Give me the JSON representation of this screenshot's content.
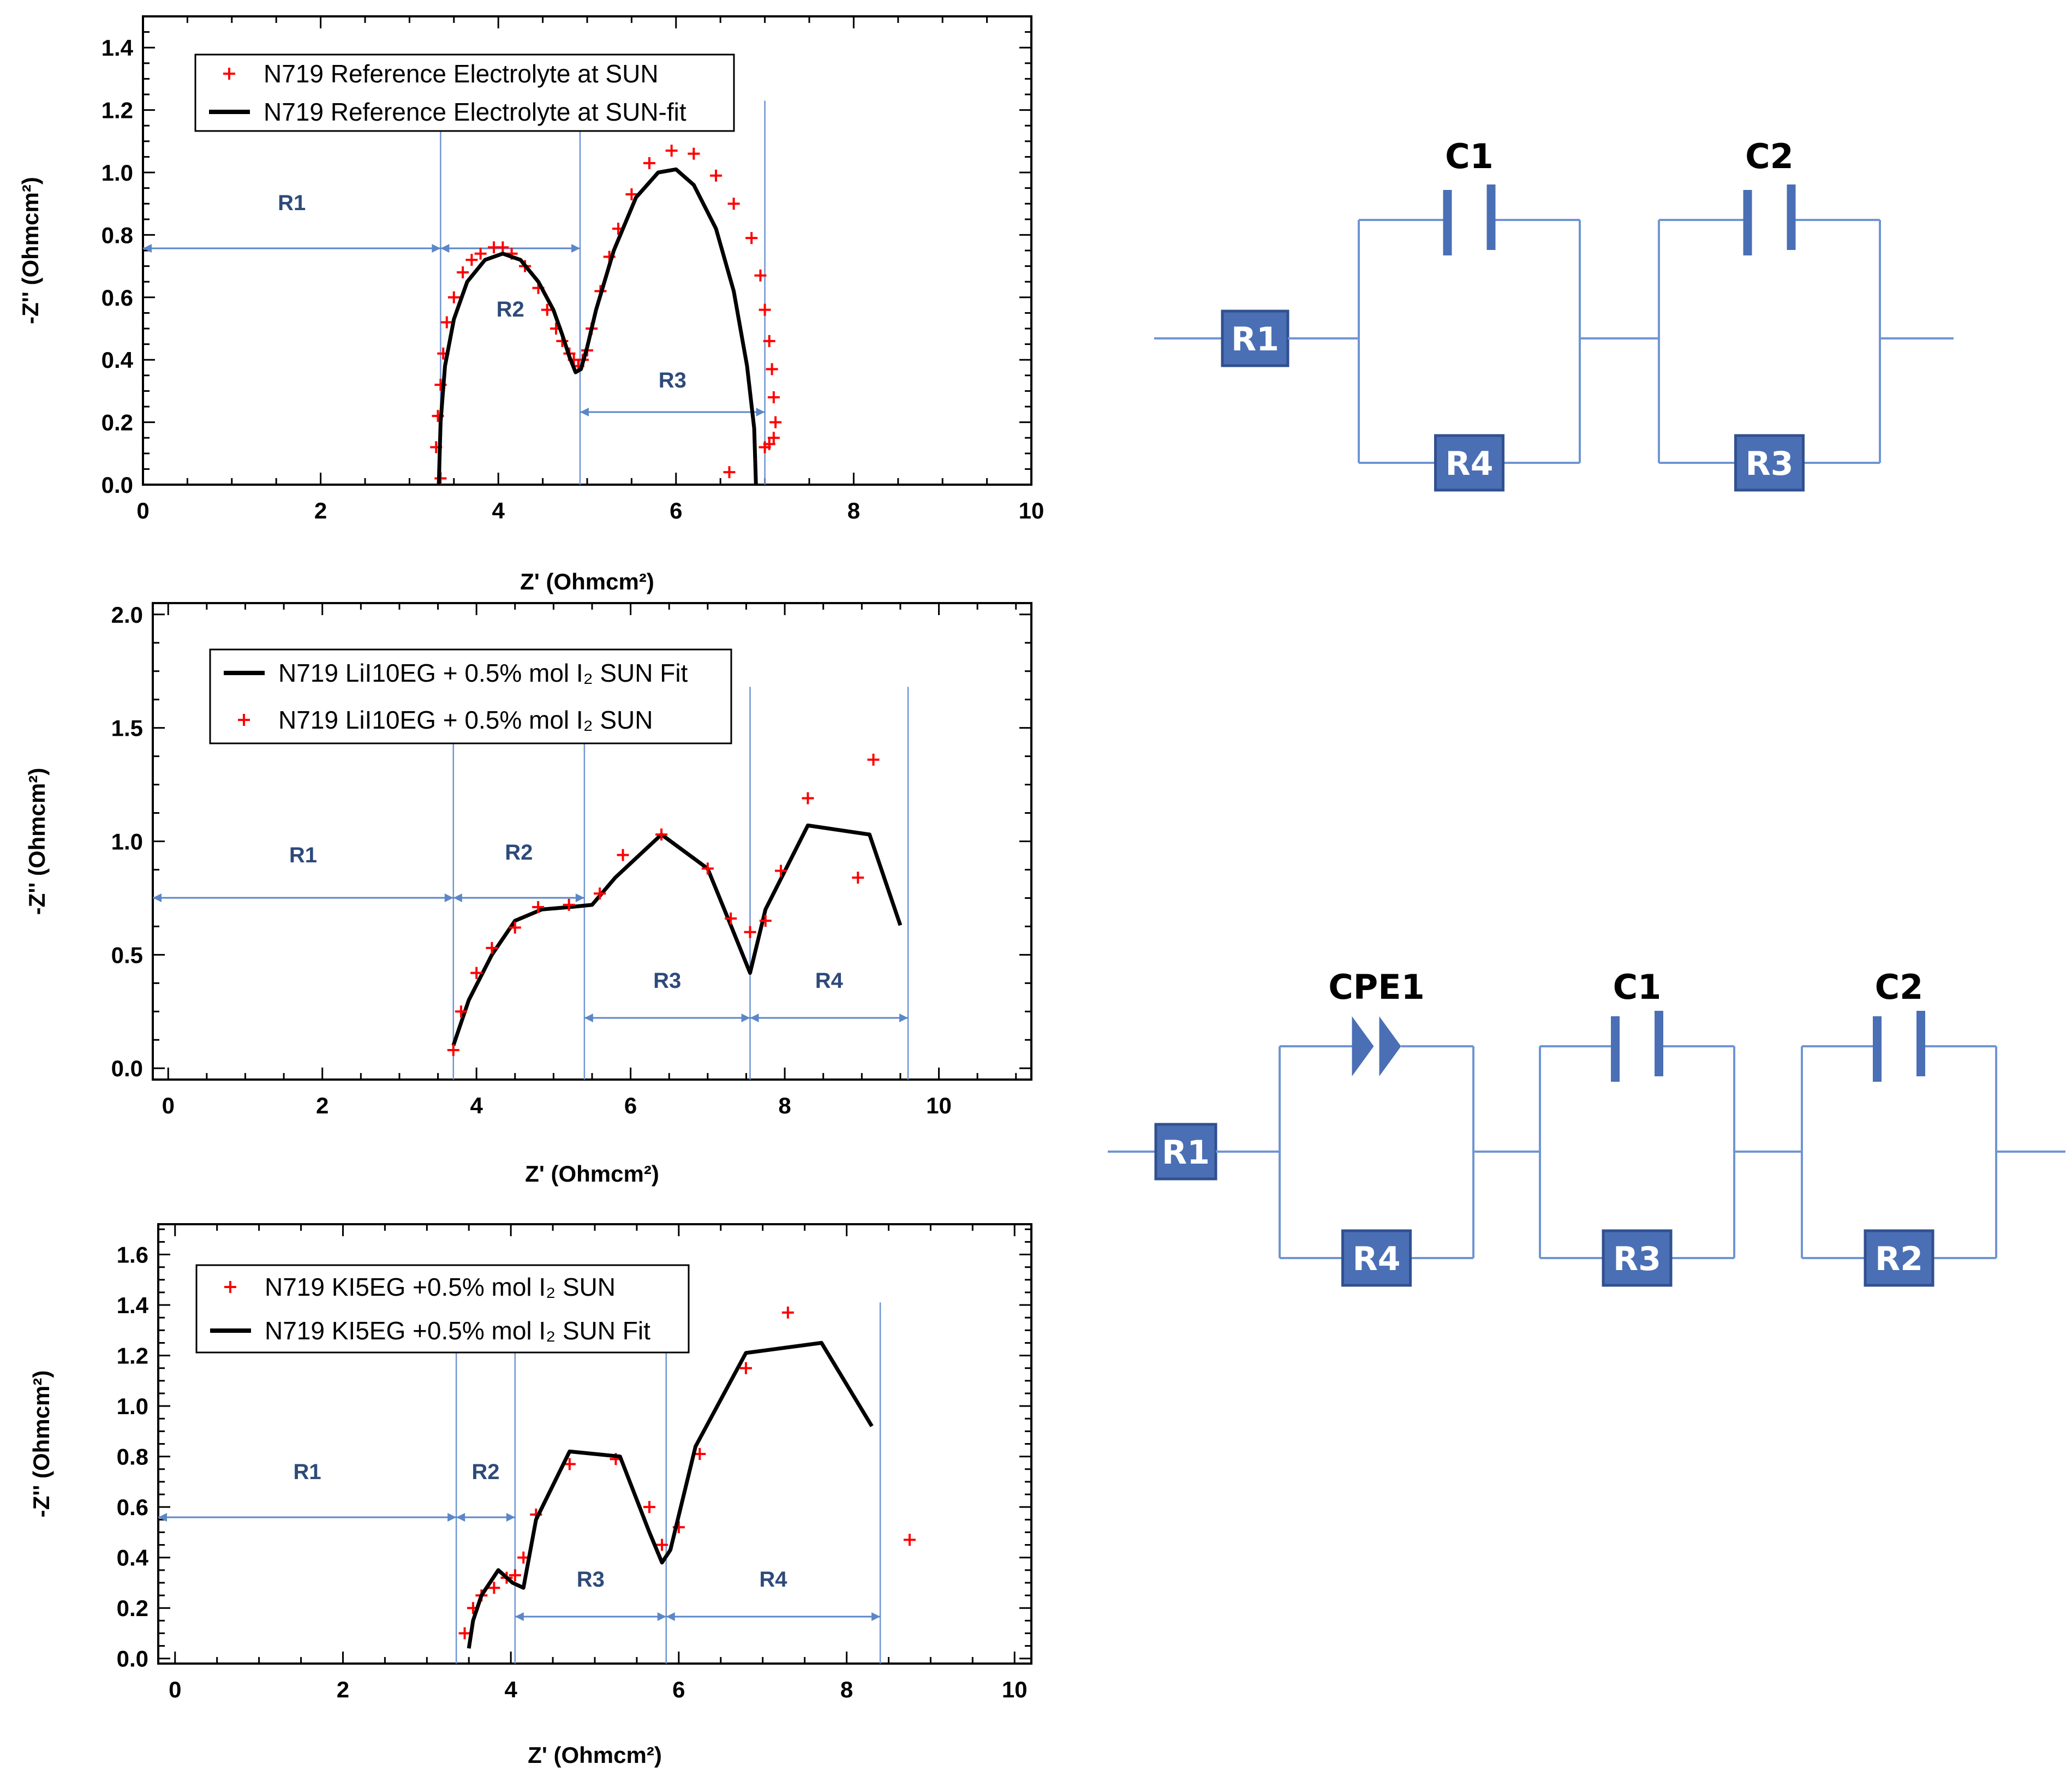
{
  "colors": {
    "marker": "#ff0000",
    "fit": "#000000",
    "guide": "#6f95d2",
    "arrow": "#5b87c8",
    "wire": "#6f95d2",
    "component_fill": "#4a6fb5",
    "component_edge": "#31508f",
    "region_text": "#2e4a7a"
  },
  "chart_data": [
    {
      "type": "scatter",
      "xlabel": "Z' (Ohmcm²)",
      "ylabel": "-Z'' (Ohmcm²)",
      "xlim": [
        0,
        10
      ],
      "ylim": [
        0,
        1.5
      ],
      "xticks": [
        "0",
        "2",
        "4",
        "6",
        "8",
        "10"
      ],
      "yticks": [
        "0.0",
        "0.2",
        "0.4",
        "0.6",
        "0.8",
        "1.0",
        "1.2",
        "1.4"
      ],
      "legend_position": "top-left",
      "series": [
        {
          "name": "N719 Reference Electrolyte at SUN",
          "style": "marker",
          "x": [
            3.35,
            3.3,
            3.32,
            3.35,
            3.38,
            3.42,
            3.5,
            3.6,
            3.7,
            3.8,
            3.95,
            4.05,
            4.15,
            4.3,
            4.45,
            4.55,
            4.65,
            4.72,
            4.8,
            4.85,
            4.9,
            4.95,
            5.0,
            5.05,
            5.15,
            5.25,
            5.35,
            5.5,
            5.7,
            5.95,
            6.2,
            6.45,
            6.65,
            6.85,
            6.95,
            7.0,
            7.05,
            7.08,
            7.1,
            7.12,
            7.1,
            7.05,
            7.0,
            6.6
          ],
          "y": [
            0.02,
            0.12,
            0.22,
            0.32,
            0.42,
            0.52,
            0.6,
            0.68,
            0.72,
            0.74,
            0.76,
            0.76,
            0.74,
            0.7,
            0.63,
            0.56,
            0.5,
            0.46,
            0.42,
            0.4,
            0.38,
            0.4,
            0.43,
            0.5,
            0.62,
            0.73,
            0.82,
            0.93,
            1.03,
            1.07,
            1.06,
            0.99,
            0.9,
            0.79,
            0.67,
            0.56,
            0.46,
            0.37,
            0.28,
            0.2,
            0.15,
            0.13,
            0.12,
            0.04
          ]
        },
        {
          "name": "N719 Reference Electrolyte at SUN-fit",
          "style": "line",
          "x": [
            3.33,
            3.35,
            3.4,
            3.5,
            3.65,
            3.85,
            4.05,
            4.25,
            4.45,
            4.62,
            4.72,
            4.8,
            4.87,
            4.93,
            5.0,
            5.1,
            5.3,
            5.55,
            5.8,
            6.0,
            6.2,
            6.45,
            6.65,
            6.8,
            6.88,
            6.9
          ],
          "y": [
            0.0,
            0.2,
            0.38,
            0.53,
            0.65,
            0.72,
            0.74,
            0.72,
            0.65,
            0.56,
            0.48,
            0.41,
            0.36,
            0.37,
            0.44,
            0.56,
            0.75,
            0.92,
            1.0,
            1.01,
            0.96,
            0.82,
            0.62,
            0.38,
            0.18,
            0.0
          ]
        }
      ],
      "regions": [
        {
          "label": "R1",
          "from": 0,
          "to": 3.35
        },
        {
          "label": "R2",
          "from": 3.35,
          "to": 4.92
        },
        {
          "label": "R3",
          "from": 4.92,
          "to": 7.0
        }
      ]
    },
    {
      "type": "scatter",
      "xlabel": "Z' (Ohmcm²)",
      "ylabel": "-Z'' (Ohmcm²)",
      "xlim": [
        -0.2,
        11.2
      ],
      "ylim": [
        -0.05,
        2.05
      ],
      "xticks": [
        "0",
        "2",
        "4",
        "6",
        "8",
        "10"
      ],
      "yticks": [
        "0.0",
        "0.5",
        "1.0",
        "1.5",
        "2.0"
      ],
      "legend_position": "top-left",
      "series": [
        {
          "name": "N719 LiI10EG + 0.5% mol I₂ SUN Fit",
          "style": "line",
          "x": [
            3.7,
            3.9,
            4.2,
            4.5,
            4.85,
            5.2,
            5.5,
            5.8,
            6.4,
            7.0,
            7.3,
            7.55,
            7.75,
            8.3,
            9.1,
            9.5
          ],
          "y": [
            0.1,
            0.3,
            0.5,
            0.65,
            0.7,
            0.71,
            0.72,
            0.84,
            1.03,
            0.88,
            0.63,
            0.42,
            0.7,
            1.07,
            1.03,
            0.63
          ]
        },
        {
          "name": "N719 LiI10EG + 0.5% mol I₂ SUN",
          "style": "marker",
          "x": [
            3.7,
            3.8,
            4.0,
            4.2,
            4.5,
            4.8,
            5.2,
            5.6,
            5.9,
            6.4,
            7.0,
            7.3,
            7.55,
            7.75,
            7.95,
            8.3,
            8.95,
            9.15
          ],
          "y": [
            0.08,
            0.25,
            0.42,
            0.53,
            0.62,
            0.71,
            0.72,
            0.77,
            0.94,
            1.03,
            0.88,
            0.66,
            0.6,
            0.65,
            0.87,
            1.19,
            0.84,
            1.36
          ]
        }
      ],
      "regions": [
        {
          "label": "R1",
          "from": -0.2,
          "to": 3.7
        },
        {
          "label": "R2",
          "from": 3.7,
          "to": 5.4
        },
        {
          "label": "R3",
          "from": 5.4,
          "to": 7.55
        },
        {
          "label": "R4",
          "from": 7.55,
          "to": 9.6
        }
      ]
    },
    {
      "type": "scatter",
      "xlabel": "Z' (Ohmcm²)",
      "ylabel": "-Z'' (Ohmcm²)",
      "xlim": [
        -0.2,
        10.2
      ],
      "ylim": [
        -0.02,
        1.72
      ],
      "xticks": [
        "0",
        "2",
        "4",
        "6",
        "8",
        "10"
      ],
      "yticks": [
        "0.0",
        "0.2",
        "0.4",
        "0.6",
        "0.8",
        "1.0",
        "1.2",
        "1.4",
        "1.6"
      ],
      "legend_position": "top-left",
      "series": [
        {
          "name": "N719 KI5EG +0.5% mol I₂ SUN",
          "style": "marker",
          "x": [
            3.45,
            3.55,
            3.65,
            3.8,
            3.95,
            4.05,
            4.15,
            4.3,
            4.7,
            5.25,
            5.65,
            5.8,
            6.0,
            6.25,
            6.8,
            7.3,
            8.75
          ],
          "y": [
            0.1,
            0.2,
            0.25,
            0.28,
            0.32,
            0.33,
            0.4,
            0.57,
            0.77,
            0.79,
            0.6,
            0.45,
            0.52,
            0.81,
            1.15,
            1.37,
            0.47
          ]
        },
        {
          "name": "N719 KI5EG +0.5% mol I₂ SUN Fit",
          "style": "line",
          "x": [
            3.5,
            3.55,
            3.65,
            3.85,
            4.02,
            4.15,
            4.3,
            4.7,
            5.3,
            5.65,
            5.8,
            5.9,
            6.2,
            6.8,
            7.7,
            8.3
          ],
          "y": [
            0.04,
            0.15,
            0.25,
            0.35,
            0.3,
            0.28,
            0.55,
            0.82,
            0.8,
            0.5,
            0.38,
            0.43,
            0.84,
            1.21,
            1.25,
            0.92
          ]
        }
      ],
      "regions": [
        {
          "label": "R1",
          "from": -0.2,
          "to": 3.35
        },
        {
          "label": "R2",
          "from": 3.35,
          "to": 4.05
        },
        {
          "label": "R3",
          "from": 4.05,
          "to": 5.85
        },
        {
          "label": "R4",
          "from": 5.85,
          "to": 8.4
        }
      ]
    }
  ],
  "circuits": [
    {
      "series_resistor": "R1",
      "blocks": [
        {
          "capacitor": "C1",
          "resistor": "R4"
        },
        {
          "capacitor": "C2",
          "resistor": "R3"
        }
      ]
    },
    {
      "series_resistor": "R1",
      "blocks": [
        {
          "capacitor": "CPE1",
          "kind": "cpe",
          "resistor": "R4"
        },
        {
          "capacitor": "C1",
          "resistor": "R3"
        },
        {
          "capacitor": "C2",
          "resistor": "R2"
        }
      ]
    }
  ]
}
